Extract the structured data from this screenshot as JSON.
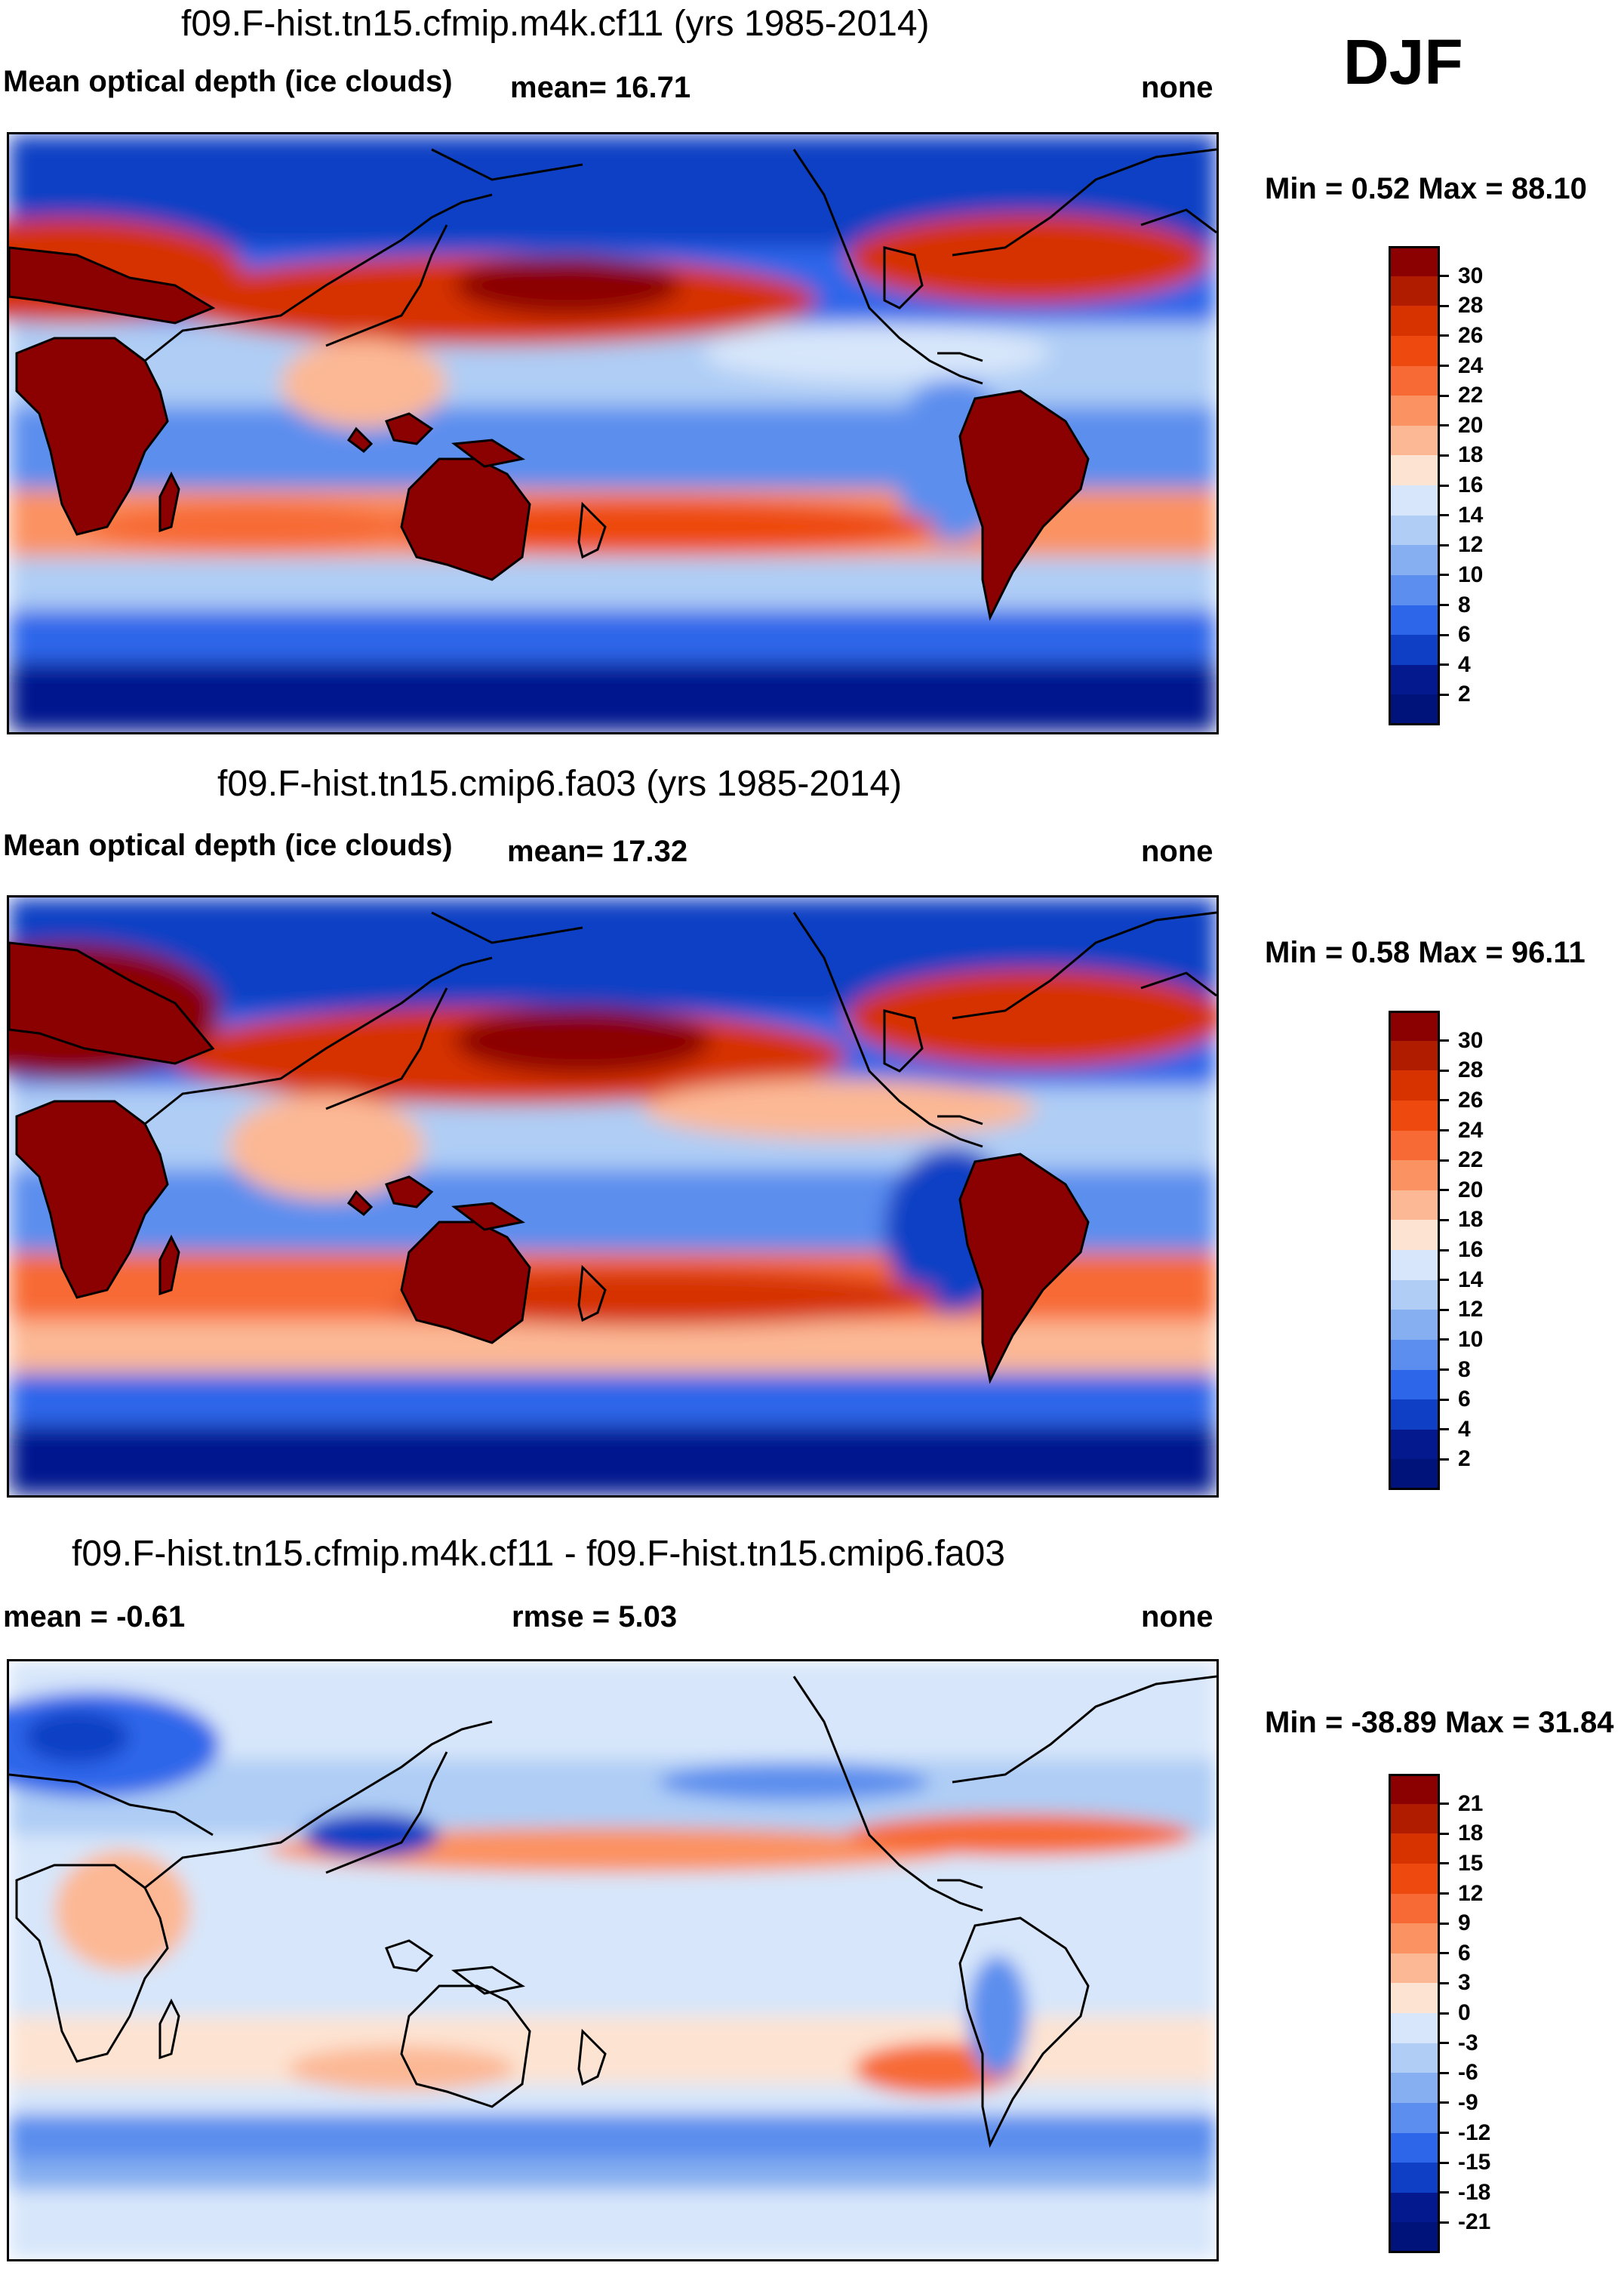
{
  "season": "DJF",
  "panels": [
    {
      "title": "f09.F-hist.tn15.cfmip.m4k.cf11 (yrs 1985-2014)",
      "left_label": "Mean optical depth (ice clouds)",
      "mean_label": "mean=  16.71",
      "right_label": "none",
      "minmax": "Min =   0.52 Max =  88.10",
      "colorbar": {
        "labels": [
          "30",
          "28",
          "26",
          "24",
          "22",
          "20",
          "18",
          "16",
          "14",
          "12",
          "10",
          "8",
          "6",
          "4",
          "2"
        ],
        "colors": [
          "#8b0000",
          "#b01c00",
          "#d63300",
          "#ee4a10",
          "#f76a36",
          "#fb9262",
          "#fcb894",
          "#fde3d2",
          "#d7e6fa",
          "#afcdf5",
          "#85aff0",
          "#5b8eee",
          "#2e66ea",
          "#0f3fc5",
          "#05198f",
          "#00137a"
        ]
      }
    },
    {
      "title": "f09.F-hist.tn15.cmip6.fa03 (yrs 1985-2014)",
      "left_label": "Mean optical depth (ice clouds)",
      "mean_label": "mean=  17.32",
      "right_label": "none",
      "minmax": "Min =   0.58 Max =  96.11",
      "colorbar": {
        "labels": [
          "30",
          "28",
          "26",
          "24",
          "22",
          "20",
          "18",
          "16",
          "14",
          "12",
          "10",
          "8",
          "6",
          "4",
          "2"
        ],
        "colors": [
          "#8b0000",
          "#b01c00",
          "#d63300",
          "#ee4a10",
          "#f76a36",
          "#fb9262",
          "#fcb894",
          "#fde3d2",
          "#d7e6fa",
          "#afcdf5",
          "#85aff0",
          "#5b8eee",
          "#2e66ea",
          "#0f3fc5",
          "#05198f",
          "#00137a"
        ]
      }
    },
    {
      "title": "f09.F-hist.tn15.cfmip.m4k.cf11 - f09.F-hist.tn15.cmip6.fa03",
      "left_label": "mean =  -0.61",
      "mean_label": "rmse =    5.03",
      "right_label": "none",
      "minmax": "Min = -38.89 Max =  31.84",
      "colorbar": {
        "labels": [
          "21",
          "18",
          "15",
          "12",
          "9",
          "6",
          "3",
          "0",
          "-3",
          "-6",
          "-9",
          "-12",
          "-15",
          "-18",
          "-21"
        ],
        "colors": [
          "#8b0000",
          "#b01c00",
          "#d63300",
          "#ee4a10",
          "#f76a36",
          "#fb9262",
          "#fcb894",
          "#fde3d2",
          "#d7e6fa",
          "#afcdf5",
          "#85aff0",
          "#5b8eee",
          "#2e66ea",
          "#0f3fc5",
          "#05198f",
          "#00137a"
        ]
      }
    }
  ]
}
